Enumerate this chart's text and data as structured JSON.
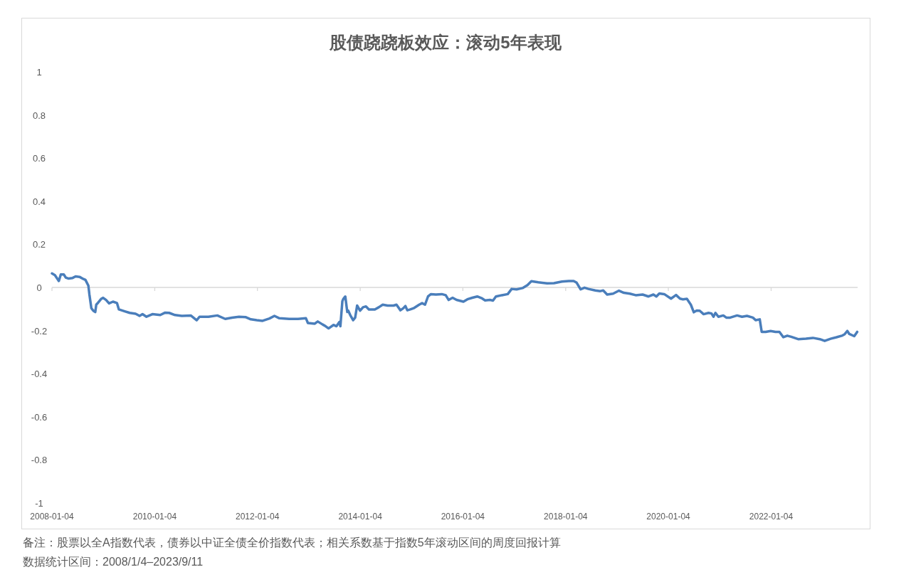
{
  "chart_data": {
    "type": "line",
    "title": "股债跷跷板效应：滚动5年表现",
    "annotations": [
      "备注：股票以全A指数代表，债券以中证全债全价指数代表；相关系数基于指数5年滚动区间的周度回报计算",
      "数据统计区间：2008/1/4–2023/9/11"
    ],
    "x": [
      "2008-01-04",
      "2008-01-25",
      "2008-02-22",
      "2008-03-07",
      "2008-03-28",
      "2008-04-11",
      "2008-05-02",
      "2008-05-30",
      "2008-06-20",
      "2008-07-18",
      "2008-08-15",
      "2008-08-29",
      "2008-09-19",
      "2008-09-26",
      "2008-10-10",
      "2008-10-24",
      "2008-11-07",
      "2008-11-14",
      "2008-11-28",
      "2008-12-19",
      "2009-01-02",
      "2009-01-23",
      "2009-02-13",
      "2009-03-13",
      "2009-04-10",
      "2009-04-24",
      "2009-06-05",
      "2009-07-10",
      "2009-08-21",
      "2009-09-18",
      "2009-10-09",
      "2009-11-06",
      "2009-12-18",
      "2010-02-12",
      "2010-03-19",
      "2010-04-16",
      "2010-05-28",
      "2010-07-16",
      "2010-09-17",
      "2010-10-29",
      "2010-11-19",
      "2011-01-21",
      "2011-03-25",
      "2011-05-20",
      "2011-07-08",
      "2011-08-26",
      "2011-10-14",
      "2011-11-18",
      "2011-12-30",
      "2012-02-10",
      "2012-03-30",
      "2012-05-04",
      "2012-06-08",
      "2012-08-17",
      "2012-10-19",
      "2012-12-14",
      "2012-12-28",
      "2013-02-15",
      "2013-03-08",
      "2013-04-12",
      "2013-05-03",
      "2013-05-24",
      "2013-06-28",
      "2013-07-19",
      "2013-08-09",
      "2013-08-16",
      "2013-08-30",
      "2013-09-06",
      "2013-09-20",
      "2013-10-04",
      "2013-10-11",
      "2013-10-25",
      "2013-11-15",
      "2013-11-29",
      "2013-12-13",
      "2014-01-03",
      "2014-01-24",
      "2014-02-14",
      "2014-03-07",
      "2014-04-18",
      "2014-05-16",
      "2014-06-13",
      "2014-07-18",
      "2014-08-29",
      "2014-09-19",
      "2014-10-17",
      "2014-11-07",
      "2014-11-21",
      "2014-12-05",
      "2014-12-26",
      "2015-01-23",
      "2015-02-27",
      "2015-03-20",
      "2015-04-10",
      "2015-05-01",
      "2015-05-22",
      "2015-06-26",
      "2015-08-07",
      "2015-09-04",
      "2015-09-25",
      "2015-10-23",
      "2015-11-20",
      "2016-01-08",
      "2016-02-05",
      "2016-03-11",
      "2016-04-15",
      "2016-05-20",
      "2016-06-10",
      "2016-07-15",
      "2016-08-05",
      "2016-08-26",
      "2016-10-07",
      "2016-11-18",
      "2016-12-16",
      "2017-01-20",
      "2017-03-03",
      "2017-04-07",
      "2017-05-05",
      "2017-06-23",
      "2017-08-25",
      "2017-10-13",
      "2017-12-08",
      "2018-01-26",
      "2018-03-02",
      "2018-03-23",
      "2018-04-20",
      "2018-05-18",
      "2018-06-15",
      "2018-08-03",
      "2018-09-07",
      "2018-09-28",
      "2018-10-26",
      "2018-12-07",
      "2019-01-18",
      "2019-02-22",
      "2019-04-05",
      "2019-05-17",
      "2019-07-05",
      "2019-08-16",
      "2019-09-20",
      "2019-10-11",
      "2019-11-01",
      "2019-12-06",
      "2020-01-23",
      "2020-02-28",
      "2020-03-27",
      "2020-04-17",
      "2020-05-15",
      "2020-06-12",
      "2020-07-03",
      "2020-07-24",
      "2020-08-14",
      "2020-09-11",
      "2020-10-16",
      "2020-11-06",
      "2020-11-20",
      "2020-12-04",
      "2020-12-25",
      "2021-01-29",
      "2021-02-19",
      "2021-03-19",
      "2021-05-07",
      "2021-06-11",
      "2021-07-16",
      "2021-08-27",
      "2021-09-17",
      "2021-10-15",
      "2021-10-29",
      "2021-11-26",
      "2021-12-31",
      "2022-02-04",
      "2022-03-04",
      "2022-04-01",
      "2022-04-29",
      "2022-05-27",
      "2022-07-15",
      "2022-09-09",
      "2022-10-28",
      "2022-12-16",
      "2023-01-20",
      "2023-03-03",
      "2023-04-14",
      "2023-05-26",
      "2023-06-09",
      "2023-06-30",
      "2023-07-14",
      "2023-08-18",
      "2023-09-08"
    ],
    "series": [
      {
        "color": "#4a7ebb",
        "values": [
          0.065,
          0.057,
          0.03,
          0.06,
          0.06,
          0.046,
          0.041,
          0.044,
          0.051,
          0.049,
          0.039,
          0.035,
          0.008,
          -0.031,
          -0.096,
          -0.108,
          -0.114,
          -0.08,
          -0.07,
          -0.053,
          -0.048,
          -0.058,
          -0.074,
          -0.066,
          -0.072,
          -0.102,
          -0.111,
          -0.118,
          -0.122,
          -0.132,
          -0.124,
          -0.136,
          -0.124,
          -0.128,
          -0.117,
          -0.118,
          -0.128,
          -0.132,
          -0.13,
          -0.152,
          -0.136,
          -0.136,
          -0.13,
          -0.146,
          -0.14,
          -0.136,
          -0.138,
          -0.148,
          -0.152,
          -0.155,
          -0.144,
          -0.132,
          -0.143,
          -0.146,
          -0.146,
          -0.143,
          -0.165,
          -0.168,
          -0.158,
          -0.172,
          -0.18,
          -0.19,
          -0.174,
          -0.18,
          -0.16,
          -0.18,
          -0.064,
          -0.053,
          -0.042,
          -0.114,
          -0.108,
          -0.128,
          -0.152,
          -0.14,
          -0.084,
          -0.108,
          -0.092,
          -0.088,
          -0.102,
          -0.102,
          -0.092,
          -0.08,
          -0.084,
          -0.084,
          -0.08,
          -0.106,
          -0.096,
          -0.086,
          -0.106,
          -0.102,
          -0.095,
          -0.08,
          -0.073,
          -0.08,
          -0.042,
          -0.031,
          -0.033,
          -0.031,
          -0.036,
          -0.058,
          -0.048,
          -0.058,
          -0.066,
          -0.055,
          -0.048,
          -0.042,
          -0.051,
          -0.06,
          -0.058,
          -0.061,
          -0.042,
          -0.036,
          -0.031,
          -0.007,
          -0.009,
          -0.003,
          0.011,
          0.029,
          0.024,
          0.019,
          0.02,
          0.027,
          0.03,
          0.03,
          0.022,
          -0.009,
          -0.001,
          -0.007,
          -0.014,
          -0.017,
          -0.014,
          -0.033,
          -0.029,
          -0.015,
          -0.025,
          -0.029,
          -0.036,
          -0.033,
          -0.042,
          -0.033,
          -0.042,
          -0.028,
          -0.031,
          -0.052,
          -0.035,
          -0.052,
          -0.055,
          -0.053,
          -0.08,
          -0.115,
          -0.107,
          -0.108,
          -0.124,
          -0.118,
          -0.121,
          -0.136,
          -0.118,
          -0.136,
          -0.13,
          -0.14,
          -0.14,
          -0.13,
          -0.136,
          -0.132,
          -0.14,
          -0.152,
          -0.148,
          -0.206,
          -0.206,
          -0.202,
          -0.206,
          -0.206,
          -0.231,
          -0.224,
          -0.229,
          -0.24,
          -0.238,
          -0.234,
          -0.24,
          -0.248,
          -0.238,
          -0.231,
          -0.223,
          -0.218,
          -0.202,
          -0.216,
          -0.226,
          -0.206
        ]
      }
    ],
    "xlim": [
      "2008-01-04",
      "2023-09-11"
    ],
    "xticks": [
      {
        "value": "2008-01-04",
        "label": "2008-01-04"
      },
      {
        "value": "2010-01-04",
        "label": "2010-01-04"
      },
      {
        "value": "2012-01-04",
        "label": "2012-01-04"
      },
      {
        "value": "2014-01-04",
        "label": "2014-01-04"
      },
      {
        "value": "2016-01-04",
        "label": "2016-01-04"
      },
      {
        "value": "2018-01-04",
        "label": "2018-01-04"
      },
      {
        "value": "2020-01-04",
        "label": "2020-01-04"
      },
      {
        "value": "2022-01-04",
        "label": "2022-01-04"
      }
    ],
    "ylim": [
      -1,
      1
    ],
    "yticks": [
      -1,
      -0.8,
      -0.6,
      -0.4,
      -0.2,
      0,
      0.2,
      0.4,
      0.6,
      0.8,
      1
    ]
  }
}
